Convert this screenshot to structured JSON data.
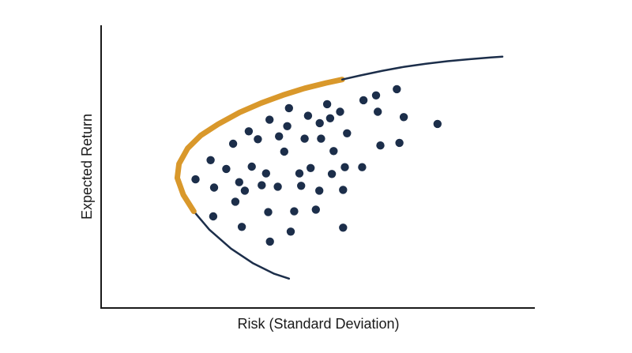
{
  "chart_data": {
    "type": "scatter",
    "title": "",
    "xlabel": "Risk (Standard Deviation)",
    "ylabel": "Expected Return",
    "xlim": [
      0,
      100
    ],
    "ylim": [
      0,
      100
    ],
    "grid": false,
    "legend": "none",
    "series": [
      {
        "type": "scatter",
        "color": "#1c2e4a",
        "points": [
          [
            21.8,
            45.5
          ],
          [
            25.3,
            52.3
          ],
          [
            26.1,
            42.6
          ],
          [
            25.9,
            32.4
          ],
          [
            28.9,
            49.2
          ],
          [
            30.5,
            58.1
          ],
          [
            31.0,
            37.6
          ],
          [
            31.9,
            44.5
          ],
          [
            32.5,
            28.7
          ],
          [
            33.2,
            41.5
          ],
          [
            34.1,
            62.5
          ],
          [
            34.8,
            50.0
          ],
          [
            36.2,
            59.7
          ],
          [
            37.1,
            43.4
          ],
          [
            38.1,
            47.6
          ],
          [
            38.9,
            66.6
          ],
          [
            38.6,
            33.9
          ],
          [
            39.0,
            23.5
          ],
          [
            40.8,
            42.9
          ],
          [
            41.1,
            60.7
          ],
          [
            42.3,
            55.3
          ],
          [
            43.0,
            64.3
          ],
          [
            43.4,
            70.7
          ],
          [
            43.8,
            27.0
          ],
          [
            44.6,
            34.2
          ],
          [
            45.8,
            47.6
          ],
          [
            46.2,
            43.2
          ],
          [
            47.0,
            59.9
          ],
          [
            47.8,
            68.0
          ],
          [
            48.4,
            49.5
          ],
          [
            49.6,
            34.8
          ],
          [
            50.4,
            41.5
          ],
          [
            50.8,
            59.9
          ],
          [
            50.5,
            65.4
          ],
          [
            52.2,
            72.1
          ],
          [
            52.9,
            67.1
          ],
          [
            53.7,
            55.5
          ],
          [
            53.3,
            47.4
          ],
          [
            55.2,
            69.4
          ],
          [
            56.3,
            49.8
          ],
          [
            55.9,
            41.8
          ],
          [
            55.9,
            28.4
          ],
          [
            56.8,
            61.8
          ],
          [
            60.3,
            49.8
          ],
          [
            60.6,
            73.5
          ],
          [
            63.5,
            75.2
          ],
          [
            63.9,
            69.4
          ],
          [
            64.5,
            57.5
          ],
          [
            68.3,
            77.4
          ],
          [
            68.9,
            58.4
          ],
          [
            69.9,
            67.5
          ],
          [
            77.7,
            65.1
          ]
        ]
      },
      {
        "type": "line",
        "name": "",
        "color": "#1c2e4a",
        "points": [
          [
            21.4,
            34.2
          ],
          [
            25.0,
            27.7
          ],
          [
            30.0,
            21.0
          ],
          [
            35.0,
            15.9
          ],
          [
            40.0,
            12.1
          ],
          [
            43.4,
            10.4
          ]
        ]
      },
      {
        "type": "line",
        "name": "",
        "color": "#d9982b",
        "points": [
          [
            21.4,
            34.2
          ],
          [
            19.0,
            40.0
          ],
          [
            17.6,
            46.0
          ],
          [
            18.0,
            51.0
          ],
          [
            20.0,
            56.5
          ],
          [
            23.0,
            61.0
          ],
          [
            27.0,
            65.0
          ],
          [
            32.0,
            69.2
          ],
          [
            37.0,
            72.5
          ],
          [
            42.0,
            75.3
          ],
          [
            47.0,
            77.7
          ],
          [
            52.0,
            79.6
          ],
          [
            55.7,
            80.8
          ]
        ]
      },
      {
        "type": "line",
        "name": "",
        "color": "#1c2e4a",
        "points": [
          [
            55.7,
            80.8
          ],
          [
            60.0,
            82.3
          ],
          [
            65.0,
            83.9
          ],
          [
            70.0,
            85.3
          ],
          [
            75.0,
            86.4
          ],
          [
            80.0,
            87.3
          ],
          [
            85.0,
            88.0
          ],
          [
            90.0,
            88.6
          ],
          [
            92.7,
            88.9
          ]
        ]
      }
    ]
  }
}
